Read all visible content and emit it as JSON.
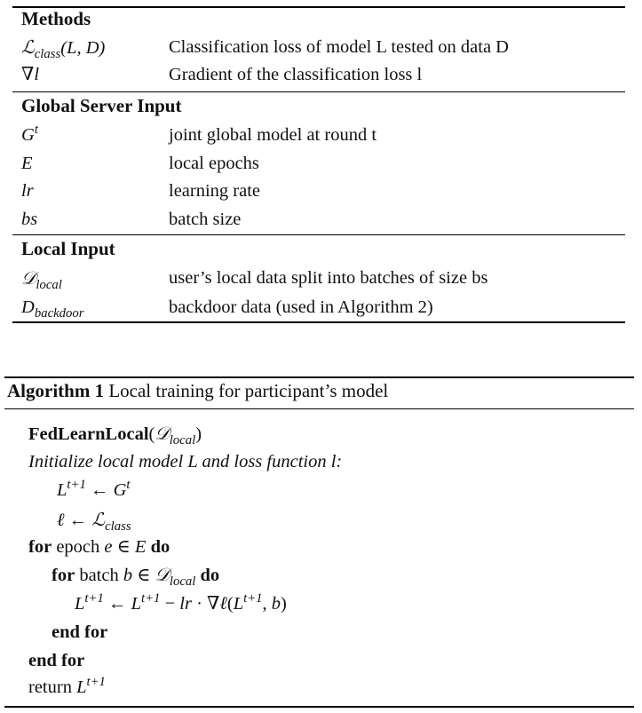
{
  "table": {
    "methods": {
      "header": "Methods",
      "rows": [
        {
          "symbol": "ℒ",
          "symbol_sub": "class",
          "symbol_suffix": "(L, D)",
          "desc": "Classification loss of model L tested on data D"
        },
        {
          "symbol": "∇l",
          "desc": "Gradient of the classification loss l"
        }
      ]
    },
    "server": {
      "header": "Global Server Input",
      "rows": [
        {
          "symbol": "G",
          "symbol_sup": "t",
          "desc": "joint global model at round t"
        },
        {
          "symbol": "E",
          "desc": "local epochs"
        },
        {
          "symbol": "lr",
          "desc": "learning rate"
        },
        {
          "symbol": "bs",
          "desc": "batch size"
        }
      ]
    },
    "local": {
      "header": "Local Input",
      "rows": [
        {
          "symbol": "𝒟",
          "symbol_sub": "local",
          "desc": "user’s local data split into batches of size bs"
        },
        {
          "symbol": "D",
          "symbol_sub": "backdoor",
          "desc": "backdoor data (used in Algorithm 2)"
        }
      ]
    }
  },
  "algorithm": {
    "label": "Algorithm 1",
    "title": "Local training for participant’s model",
    "func_name": "FedLearnLocal",
    "func_arg": "𝒟",
    "func_arg_sub": "local",
    "init_line": "Initialize local model L and loss function l:",
    "assign1_lhs": "L",
    "assign1_lhs_sup": "t+1",
    "assign1_rhs": "G",
    "assign1_rhs_sup": "t",
    "assign2_lhs": "ℓ",
    "assign2_rhs": "ℒ",
    "assign2_rhs_sub": "class",
    "for1_kw": "for",
    "for1_body": "epoch",
    "for1_var": "e ∈ E",
    "do_kw": "do",
    "for2_kw": "for",
    "for2_body": "batch",
    "for2_var": "b ∈ 𝒟",
    "for2_var_sub": "local",
    "update_expr": "L",
    "endfor_inner": "end for",
    "endfor_outer": "end for",
    "return_kw": "return",
    "return_val": "L",
    "return_sup": "t+1"
  }
}
